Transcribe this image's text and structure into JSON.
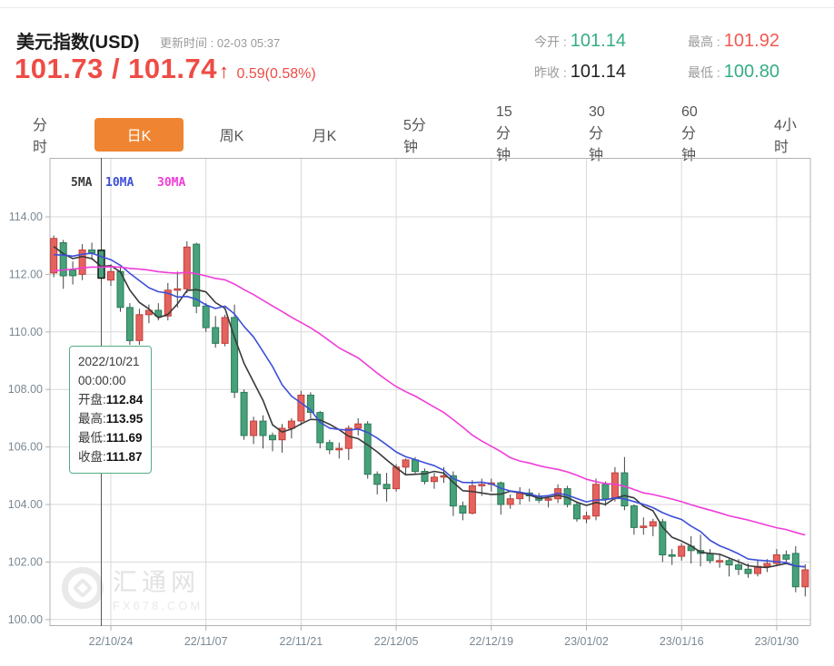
{
  "header": {
    "title": "美元指数(USD)",
    "update_time": "更新时间 : 02-03 05:37",
    "bid": "101.73",
    "separator": " / ",
    "ask": "101.74",
    "arrow_icon": "↑",
    "change": "0.59(0.58%)",
    "price_color": "#ee4c45"
  },
  "quote": {
    "stats": [
      {
        "label": "今开 :",
        "value": "101.14",
        "color": "#35ad85"
      },
      {
        "label": "昨收 :",
        "value": "101.14",
        "color": "#222222"
      },
      {
        "label": "最高 :",
        "value": "101.92",
        "color": "#f05a52"
      },
      {
        "label": "最低 :",
        "value": "100.80",
        "color": "#35ad85"
      }
    ]
  },
  "tabs": {
    "items": [
      "分时",
      "日K",
      "周K",
      "月K",
      "5分钟",
      "15分钟",
      "30分钟",
      "60分钟",
      "4小时"
    ],
    "active_index": 1,
    "active_bg": "#ef8532"
  },
  "legend": [
    {
      "label": "5MA",
      "color": "#3a3a3a"
    },
    {
      "label": "10MA",
      "color": "#3d4fd8"
    },
    {
      "label": "30MA",
      "color": "#f03cd8"
    }
  ],
  "tooltip": {
    "date": "2022/10/21",
    "time": "00:00:00",
    "rows": [
      {
        "label": "开盘:",
        "value": "112.84"
      },
      {
        "label": "最高:",
        "value": "113.95"
      },
      {
        "label": "最低:",
        "value": "111.69"
      },
      {
        "label": "收盘:",
        "value": "111.87"
      }
    ]
  },
  "watermark": {
    "name": "汇通网",
    "domain": "FX678.COM"
  },
  "chart_data": {
    "type": "candlestick",
    "title": "美元指数(USD) 日K",
    "y_ticks": [
      "114.00",
      "112.00",
      "110.00",
      "108.00",
      "106.00",
      "104.00",
      "102.00",
      "100.00"
    ],
    "ylim": [
      99.8,
      116.0
    ],
    "x_labels": [
      "22/10/24",
      "22/11/07",
      "22/11/21",
      "22/12/05",
      "22/12/19",
      "23/01/02",
      "23/01/16",
      "23/01/30"
    ],
    "grid": true,
    "selected_index": 5,
    "ma_periods": [
      5,
      10,
      30
    ],
    "ma_colors": [
      "#3a3a3a",
      "#3d4fd8",
      "#f03cd8"
    ],
    "ma_seed": [
      110.6,
      110.9,
      111.2,
      111.5,
      111.8,
      112.0,
      111.6,
      111.3,
      111.0,
      111.4,
      111.8,
      112.1,
      112.4,
      112.2,
      112.0,
      112.3,
      112.5,
      112.2,
      112.0,
      112.3,
      112.2,
      112.1,
      112.3,
      112.2,
      112.4,
      113.0,
      113.2,
      112.8,
      112.5,
      113.1
    ],
    "colors": {
      "up": "#e5635e",
      "up_stroke": "#c0403a",
      "down": "#47a17b",
      "down_stroke": "#2c7a58",
      "wick": "#444444",
      "grid": "#d9d9d9",
      "border": "#b3b3b3",
      "crosshair": "#555555",
      "axis_text": "#7b8893"
    },
    "candles": [
      [
        "2022-10-14",
        112.05,
        113.35,
        111.9,
        113.25
      ],
      [
        "2022-10-17",
        113.1,
        113.2,
        111.5,
        111.95
      ],
      [
        "2022-10-18",
        112.15,
        112.45,
        111.65,
        111.95
      ],
      [
        "2022-10-19",
        112.0,
        113.05,
        111.8,
        112.85
      ],
      [
        "2022-10-20",
        112.85,
        113.1,
        112.5,
        112.75
      ],
      [
        "2022-10-21",
        112.84,
        113.95,
        111.69,
        111.87
      ],
      [
        "2022-10-24",
        111.8,
        112.35,
        111.6,
        112.1
      ],
      [
        "2022-10-25",
        112.1,
        112.25,
        110.7,
        110.85
      ],
      [
        "2022-10-26",
        110.85,
        111.0,
        109.55,
        109.7
      ],
      [
        "2022-10-27",
        109.7,
        110.8,
        109.55,
        110.6
      ],
      [
        "2022-10-28",
        110.6,
        110.95,
        110.3,
        110.75
      ],
      [
        "2022-10-31",
        110.75,
        111.0,
        110.4,
        110.55
      ],
      [
        "2022-11-01",
        110.55,
        111.7,
        110.4,
        111.45
      ],
      [
        "2022-11-02",
        111.45,
        112.1,
        110.85,
        111.5
      ],
      [
        "2022-11-03",
        111.5,
        113.15,
        111.35,
        112.95
      ],
      [
        "2022-11-04",
        113.05,
        113.1,
        110.65,
        110.9
      ],
      [
        "2022-11-07",
        110.9,
        111.0,
        110.0,
        110.15
      ],
      [
        "2022-11-08",
        110.15,
        110.55,
        109.45,
        109.6
      ],
      [
        "2022-11-09",
        109.6,
        110.6,
        109.5,
        110.5
      ],
      [
        "2022-11-10",
        110.5,
        110.95,
        107.7,
        107.9
      ],
      [
        "2022-11-11",
        107.9,
        108.0,
        106.25,
        106.4
      ],
      [
        "2022-11-14",
        106.4,
        107.05,
        106.1,
        106.9
      ],
      [
        "2022-11-15",
        106.9,
        107.1,
        105.95,
        106.4
      ],
      [
        "2022-11-16",
        106.4,
        106.5,
        105.85,
        106.25
      ],
      [
        "2022-11-17",
        106.25,
        106.8,
        105.8,
        106.65
      ],
      [
        "2022-11-18",
        106.65,
        107.0,
        106.3,
        106.9
      ],
      [
        "2022-11-21",
        106.9,
        107.95,
        106.75,
        107.8
      ],
      [
        "2022-11-22",
        107.8,
        107.9,
        107.0,
        107.2
      ],
      [
        "2022-11-23",
        107.2,
        107.25,
        105.95,
        106.15
      ],
      [
        "2022-11-24",
        106.15,
        106.25,
        105.75,
        105.9
      ],
      [
        "2022-11-25",
        105.9,
        106.15,
        105.6,
        105.95
      ],
      [
        "2022-11-28",
        105.95,
        106.75,
        105.55,
        106.65
      ],
      [
        "2022-11-29",
        106.65,
        107.0,
        106.4,
        106.8
      ],
      [
        "2022-11-30",
        106.8,
        106.9,
        104.9,
        105.05
      ],
      [
        "2022-12-01",
        105.05,
        105.15,
        104.35,
        104.7
      ],
      [
        "2022-12-02",
        104.7,
        105.1,
        104.1,
        104.55
      ],
      [
        "2022-12-05",
        104.55,
        105.4,
        104.45,
        105.3
      ],
      [
        "2022-12-06",
        105.3,
        105.6,
        105.05,
        105.55
      ],
      [
        "2022-12-07",
        105.55,
        105.65,
        105.05,
        105.15
      ],
      [
        "2022-12-08",
        105.15,
        105.25,
        104.7,
        104.8
      ],
      [
        "2022-12-09",
        104.8,
        105.1,
        104.55,
        104.95
      ],
      [
        "2022-12-12",
        104.95,
        105.3,
        104.75,
        105.0
      ],
      [
        "2022-12-13",
        105.0,
        105.15,
        103.6,
        103.95
      ],
      [
        "2022-12-14",
        103.95,
        104.1,
        103.45,
        103.7
      ],
      [
        "2022-12-15",
        103.7,
        104.85,
        103.65,
        104.65
      ],
      [
        "2022-12-16",
        104.65,
        104.9,
        104.3,
        104.7
      ],
      [
        "2022-12-19",
        104.7,
        104.9,
        104.45,
        104.75
      ],
      [
        "2022-12-20",
        104.75,
        104.8,
        103.65,
        104.0
      ],
      [
        "2022-12-21",
        104.0,
        104.35,
        103.85,
        104.2
      ],
      [
        "2022-12-22",
        104.2,
        104.6,
        104.0,
        104.4
      ],
      [
        "2022-12-23",
        104.4,
        104.55,
        104.1,
        104.3
      ],
      [
        "2022-12-26",
        104.3,
        104.4,
        104.05,
        104.15
      ],
      [
        "2022-12-27",
        104.15,
        104.3,
        103.9,
        104.2
      ],
      [
        "2022-12-28",
        104.2,
        104.7,
        104.05,
        104.55
      ],
      [
        "2022-12-29",
        104.55,
        104.65,
        103.9,
        104.0
      ],
      [
        "2022-12-30",
        104.0,
        104.1,
        103.4,
        103.5
      ],
      [
        "2023-01-02",
        103.5,
        103.75,
        103.35,
        103.6
      ],
      [
        "2023-01-03",
        103.6,
        104.9,
        103.45,
        104.7
      ],
      [
        "2023-01-04",
        104.7,
        104.8,
        103.95,
        104.2
      ],
      [
        "2023-01-05",
        104.2,
        105.3,
        104.1,
        105.1
      ],
      [
        "2023-01-06",
        105.1,
        105.65,
        103.8,
        103.95
      ],
      [
        "2023-01-09",
        103.95,
        104.0,
        102.95,
        103.2
      ],
      [
        "2023-01-10",
        103.2,
        103.55,
        102.95,
        103.25
      ],
      [
        "2023-01-11",
        103.25,
        103.5,
        102.9,
        103.4
      ],
      [
        "2023-01-12",
        103.4,
        103.5,
        102.0,
        102.25
      ],
      [
        "2023-01-13",
        102.25,
        102.45,
        101.9,
        102.2
      ],
      [
        "2023-01-16",
        102.2,
        102.65,
        102.05,
        102.55
      ],
      [
        "2023-01-17",
        102.55,
        102.9,
        101.95,
        102.4
      ],
      [
        "2023-01-18",
        102.4,
        102.95,
        101.85,
        102.3
      ],
      [
        "2023-01-19",
        102.3,
        102.45,
        101.95,
        102.05
      ],
      [
        "2023-01-20",
        102.0,
        102.25,
        101.8,
        102.05
      ],
      [
        "2023-01-23",
        102.05,
        102.15,
        101.5,
        101.9
      ],
      [
        "2023-01-24",
        101.9,
        102.1,
        101.55,
        101.75
      ],
      [
        "2023-01-25",
        101.75,
        101.95,
        101.45,
        101.6
      ],
      [
        "2023-01-26",
        101.6,
        102.05,
        101.5,
        101.85
      ],
      [
        "2023-01-27",
        101.85,
        102.1,
        101.65,
        101.95
      ],
      [
        "2023-01-30",
        101.95,
        102.45,
        101.85,
        102.25
      ],
      [
        "2023-01-31",
        102.25,
        102.4,
        102.0,
        102.1
      ],
      [
        "2023-02-01",
        102.3,
        102.55,
        100.95,
        101.14
      ],
      [
        "2023-02-02",
        101.14,
        101.92,
        100.8,
        101.73
      ]
    ]
  }
}
